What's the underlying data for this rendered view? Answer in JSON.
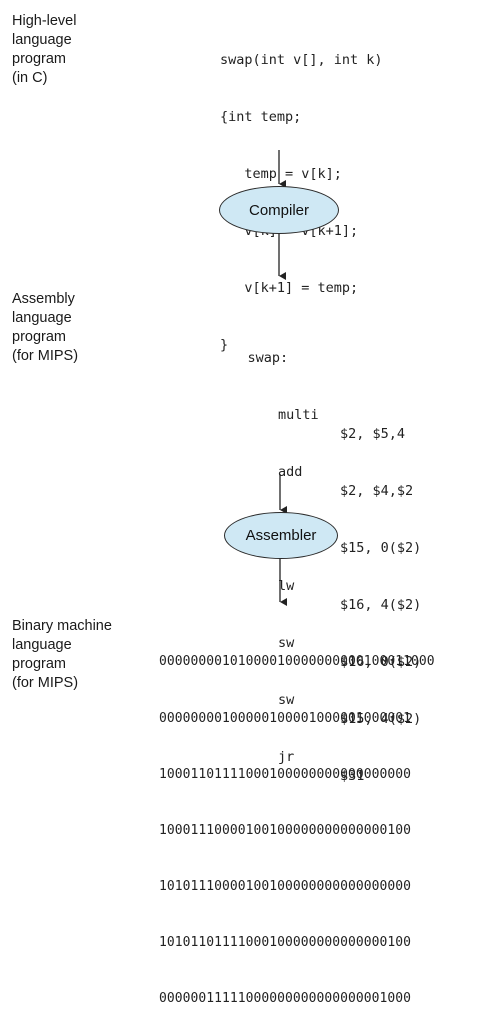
{
  "stages": {
    "high_level_label": [
      "High-level",
      "language",
      "program",
      "(in C)"
    ],
    "assembly_label": [
      "Assembly",
      "language",
      "program",
      "(for MIPS)"
    ],
    "binary_label": [
      "Binary machine",
      "language",
      "program",
      "(for MIPS)"
    ]
  },
  "c_code": [
    "swap(int v[], int k)",
    "{int temp;",
    "   temp = v[k];",
    "   v[k] = v[k+1];",
    "   v[k+1] = temp;",
    "}"
  ],
  "tools": {
    "compiler": "Compiler",
    "assembler": "Assembler"
  },
  "assembly": {
    "label": "swap:",
    "instructions": [
      {
        "op": "multi",
        "args": "$2, $5,4"
      },
      {
        "op": "add",
        "args": "$2, $4,$2"
      },
      {
        "op": "lw",
        "args": "$15, 0($2)"
      },
      {
        "op": "lw",
        "args": "$16, 4($2)"
      },
      {
        "op": "sw",
        "args": "$16, 0($2)"
      },
      {
        "op": "sw",
        "args": "$15, 4($2)"
      },
      {
        "op": "jr",
        "args": "$31"
      }
    ]
  },
  "binary": [
    "00000000101000010000000000100011000",
    "00000000100000100001000001000001",
    "10001101111000100000000000000000",
    "10001110000100100000000000000100",
    "10101110000100100000000000000000",
    "10101101111000100000000000000100",
    "00000011111000000000000000001000"
  ]
}
